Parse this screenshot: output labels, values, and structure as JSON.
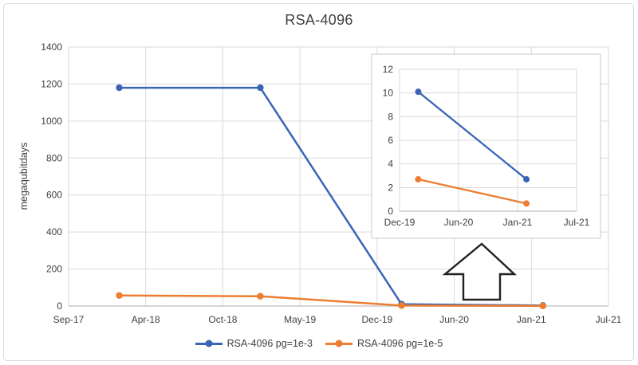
{
  "frame": {
    "background": "#FFFFFF",
    "border_color": "#DBDBDB"
  },
  "title": "RSA-4096",
  "y_axis_label": "megaqubitdays",
  "colors": {
    "series_blue": "#3A65B6",
    "series_orange": "#ED7D31",
    "gridline": "#DADADA",
    "axis_line": "#BFBFBF",
    "text": "#404040",
    "arrow_outline": "#212121"
  },
  "legend": {
    "items": [
      {
        "label": "RSA-4096 pg=1e-3",
        "color": "#3A65B6"
      },
      {
        "label": "RSA-4096 pg=1e-5",
        "color": "#ED7D31"
      }
    ]
  },
  "chart_data": [
    {
      "type": "line",
      "name": "main",
      "title": "RSA-4096",
      "ylabel": "megaqubitdays",
      "x_tick_labels": [
        "Sep-17",
        "Apr-18",
        "Oct-18",
        "May-19",
        "Dec-19",
        "Jun-20",
        "Jan-21",
        "Jul-21"
      ],
      "x_tick_months": [
        0,
        7,
        13,
        20,
        27,
        33,
        40,
        46
      ],
      "y_ticks": [
        0,
        200,
        400,
        600,
        800,
        1000,
        1200,
        1400
      ],
      "ylim": [
        0,
        1400
      ],
      "grid": true,
      "legend_position": "bottom",
      "series": [
        {
          "name": "RSA-4096 pg=1e-3",
          "color": "#3A65B6",
          "points": [
            {
              "x": "Jan-18",
              "month": 4.6,
              "y": 1180
            },
            {
              "x": "Jan-19",
              "month": 16.4,
              "y": 1180
            },
            {
              "x": "Feb-20",
              "month": 28.9,
              "y": 10.1
            },
            {
              "x": "Feb-21",
              "month": 40.9,
              "y": 2.7
            }
          ]
        },
        {
          "name": "RSA-4096 pg=1e-5",
          "color": "#ED7D31",
          "points": [
            {
              "x": "Jan-18",
              "month": 4.6,
              "y": 57
            },
            {
              "x": "Jan-19",
              "month": 16.4,
              "y": 53
            },
            {
              "x": "Feb-20",
              "month": 28.9,
              "y": 2.7
            },
            {
              "x": "Feb-21",
              "month": 40.9,
              "y": 0.65
            }
          ]
        }
      ]
    },
    {
      "type": "line",
      "name": "inset-zoom",
      "title": "",
      "ylabel": "",
      "x_tick_labels": [
        "Dec-19",
        "Jun-20",
        "Jan-21",
        "Jul-21"
      ],
      "x_tick_months": [
        27,
        33,
        40,
        46
      ],
      "y_ticks": [
        0,
        2,
        4,
        6,
        8,
        10,
        12
      ],
      "ylim": [
        0,
        12
      ],
      "grid": true,
      "series": [
        {
          "name": "RSA-4096 pg=1e-3",
          "color": "#3A65B6",
          "points": [
            {
              "x": "Feb-20",
              "month": 28.9,
              "y": 10.1
            },
            {
              "x": "Feb-21",
              "month": 40.9,
              "y": 2.7
            }
          ]
        },
        {
          "name": "RSA-4096 pg=1e-5",
          "color": "#ED7D31",
          "points": [
            {
              "x": "Feb-20",
              "month": 28.9,
              "y": 2.7
            },
            {
              "x": "Feb-21",
              "month": 40.9,
              "y": 0.65
            }
          ]
        }
      ]
    }
  ]
}
